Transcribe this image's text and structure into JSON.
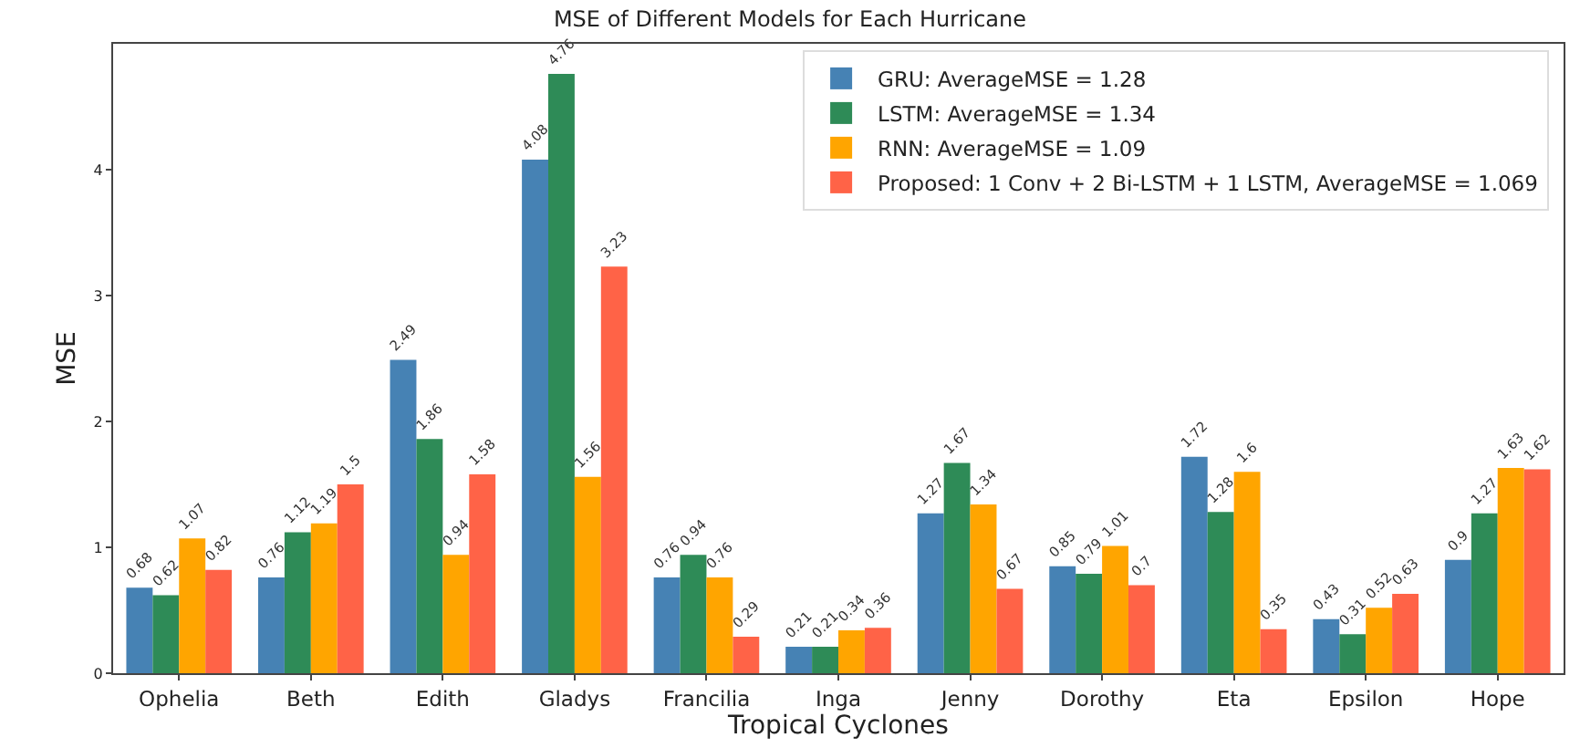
{
  "chart_data": {
    "type": "bar",
    "title": "MSE of Different Models for Each Hurricane",
    "xlabel": "Tropical Cyclones",
    "ylabel": "MSE",
    "categories": [
      "Ophelia",
      "Beth",
      "Edith",
      "Gladys",
      "Francilia",
      "Inga",
      "Jenny",
      "Dorothy",
      "Eta",
      "Epsilon",
      "Hope"
    ],
    "series": [
      {
        "name": "GRU: AverageMSE = 1.28",
        "color": "#4682b4",
        "values": [
          0.68,
          0.76,
          2.49,
          4.08,
          0.76,
          0.21,
          1.27,
          0.85,
          1.72,
          0.43,
          0.9
        ]
      },
      {
        "name": "LSTM: AverageMSE = 1.34",
        "color": "#2e8b57",
        "values": [
          0.62,
          1.12,
          1.86,
          4.76,
          0.94,
          0.21,
          1.67,
          0.79,
          1.28,
          0.31,
          1.27
        ]
      },
      {
        "name": "RNN: AverageMSE = 1.09",
        "color": "#ffa500",
        "values": [
          1.07,
          1.19,
          0.94,
          1.56,
          0.76,
          0.34,
          1.34,
          1.01,
          1.6,
          0.52,
          1.63
        ]
      },
      {
        "name": "Proposed: 1 Conv + 2 Bi-LSTM + 1 LSTM, AverageMSE = 1.069",
        "color": "#ff6347",
        "values": [
          0.82,
          1.5,
          1.58,
          3.23,
          0.29,
          0.36,
          0.67,
          0.7,
          0.35,
          0.63,
          1.62
        ]
      }
    ],
    "ylim": [
      0,
      5
    ],
    "yticks": [
      0,
      1,
      2,
      3,
      4
    ],
    "data_labels": true,
    "legend": "top right"
  }
}
